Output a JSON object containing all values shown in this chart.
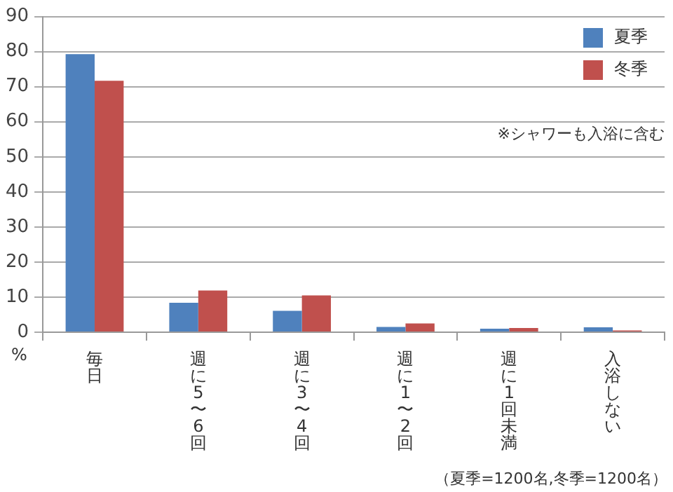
{
  "chart_data": {
    "type": "bar",
    "ylabel": "%",
    "categories": [
      "毎日",
      "週に5〜6回",
      "週に3〜4回",
      "週に1〜2回",
      "週に1回未満",
      "入浴しない"
    ],
    "series": [
      {
        "name": "夏季",
        "color": "#4f81bd",
        "values": [
          79.3,
          8.4,
          6.1,
          1.5,
          1.0,
          1.4
        ]
      },
      {
        "name": "冬季",
        "color": "#c0504d",
        "values": [
          71.7,
          11.9,
          10.5,
          2.5,
          1.2,
          0.5
        ]
      }
    ],
    "ylim": [
      0,
      90
    ],
    "yticks": [
      0,
      10,
      20,
      30,
      40,
      50,
      60,
      70,
      80,
      90
    ],
    "grid": "y",
    "legend": "top right",
    "annotations": [
      "※シャワーも入浴に含む",
      "（夏季=1200名,冬季=1200名）"
    ]
  }
}
